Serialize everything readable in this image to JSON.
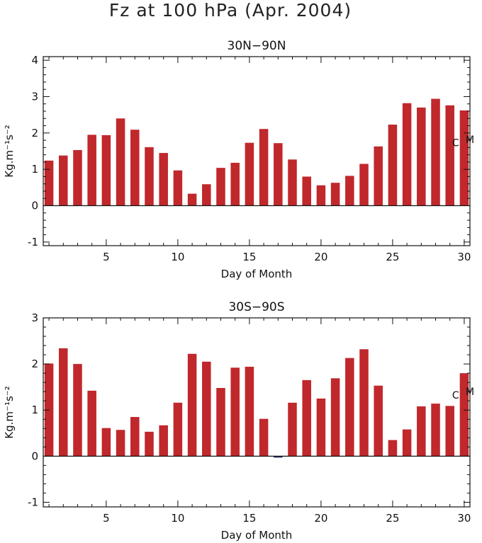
{
  "title": "Fz at 100 hPa (Apr. 2004)",
  "colors": {
    "bar": "#c0282c",
    "neg_bar": "#1e2a6e",
    "axis": "#111111"
  },
  "chart_data": [
    {
      "type": "bar",
      "title": "30N−90N",
      "xlabel": "Day of Month",
      "ylabel": "Kg.m⁻¹s⁻²",
      "xlim": [
        0.6,
        30.4
      ],
      "ylim": [
        -1.1,
        4.1
      ],
      "xticks": [
        5,
        10,
        15,
        20,
        25,
        30
      ],
      "yticks": [
        -1,
        0,
        1,
        2,
        3,
        4
      ],
      "x": [
        1,
        2,
        3,
        4,
        5,
        6,
        7,
        8,
        9,
        10,
        11,
        12,
        13,
        14,
        15,
        16,
        17,
        18,
        19,
        20,
        21,
        22,
        23,
        24,
        25,
        26,
        27,
        28,
        29,
        30
      ],
      "values": [
        1.24,
        1.38,
        1.53,
        1.95,
        1.94,
        2.4,
        2.09,
        1.61,
        1.45,
        0.97,
        0.33,
        0.59,
        1.04,
        1.18,
        1.73,
        2.11,
        1.72,
        1.27,
        0.8,
        0.56,
        0.63,
        0.82,
        1.15,
        1.63,
        2.23,
        2.82,
        2.7,
        2.94,
        2.76,
        2.62
      ],
      "markers": [
        {
          "label": "C",
          "x": 29.4,
          "y": 1.64
        },
        {
          "label": "M",
          "x": 30.4,
          "y": 1.72
        }
      ]
    },
    {
      "type": "bar",
      "title": "30S−90S",
      "xlabel": "Day of Month",
      "ylabel": "Kg.m⁻¹s⁻²",
      "xlim": [
        0.6,
        30.4
      ],
      "ylim": [
        -1.1,
        3.0
      ],
      "xticks": [
        5,
        10,
        15,
        20,
        25,
        30
      ],
      "yticks": [
        -1,
        0,
        1,
        2,
        3
      ],
      "x": [
        1,
        2,
        3,
        4,
        5,
        6,
        7,
        8,
        9,
        10,
        11,
        12,
        13,
        14,
        15,
        16,
        17,
        18,
        19,
        20,
        21,
        22,
        23,
        24,
        25,
        26,
        27,
        28,
        29,
        30
      ],
      "values": [
        2.01,
        2.34,
        2.0,
        1.42,
        0.61,
        0.57,
        0.85,
        0.53,
        0.67,
        1.16,
        2.22,
        2.05,
        1.48,
        1.92,
        1.94,
        0.81,
        -0.03,
        1.16,
        1.65,
        1.25,
        1.69,
        2.13,
        2.32,
        1.53,
        0.35,
        0.58,
        1.08,
        1.14,
        1.09,
        1.8
      ],
      "markers": [
        {
          "label": "C",
          "x": 29.4,
          "y": 1.25
        },
        {
          "label": "M",
          "x": 30.4,
          "y": 1.33
        }
      ]
    }
  ]
}
